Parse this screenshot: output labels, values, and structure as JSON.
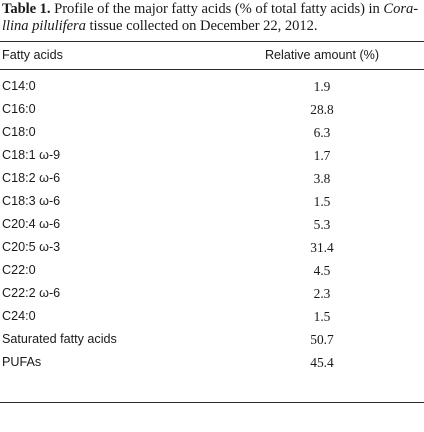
{
  "caption": {
    "label": "Table 1.",
    "text_before": " Profile of the major fatty acids (% of total fatty acids) in ",
    "species_line1": "Cora-",
    "species_line2": "llina pilulifera",
    "text_after": " tissue collected on December 22, 2012."
  },
  "table": {
    "headers": [
      "Fatty acids",
      "Relative amount (%)"
    ],
    "rows": [
      {
        "name": "C14:0",
        "value": "1.9"
      },
      {
        "name": "C16:0",
        "value": "28.8"
      },
      {
        "name": "C18:0",
        "value": "6.3"
      },
      {
        "name": "C18:1 ω-9",
        "value": "1.7"
      },
      {
        "name": "C18:2 ω-6",
        "value": "3.8"
      },
      {
        "name": "C18:3 ω-6",
        "value": "1.5"
      },
      {
        "name": "C20:4 ω-6",
        "value": "5.3"
      },
      {
        "name": "C20:5 ω-3",
        "value": "31.4"
      },
      {
        "name": "C22:0",
        "value": "4.5"
      },
      {
        "name": "C22:2 ω-6",
        "value": "2.3"
      },
      {
        "name": "C24:0",
        "value": "1.5"
      },
      {
        "name": "Saturated fatty acids",
        "value": "50.7"
      },
      {
        "name": "PUFAs",
        "value": "45.4"
      }
    ]
  }
}
